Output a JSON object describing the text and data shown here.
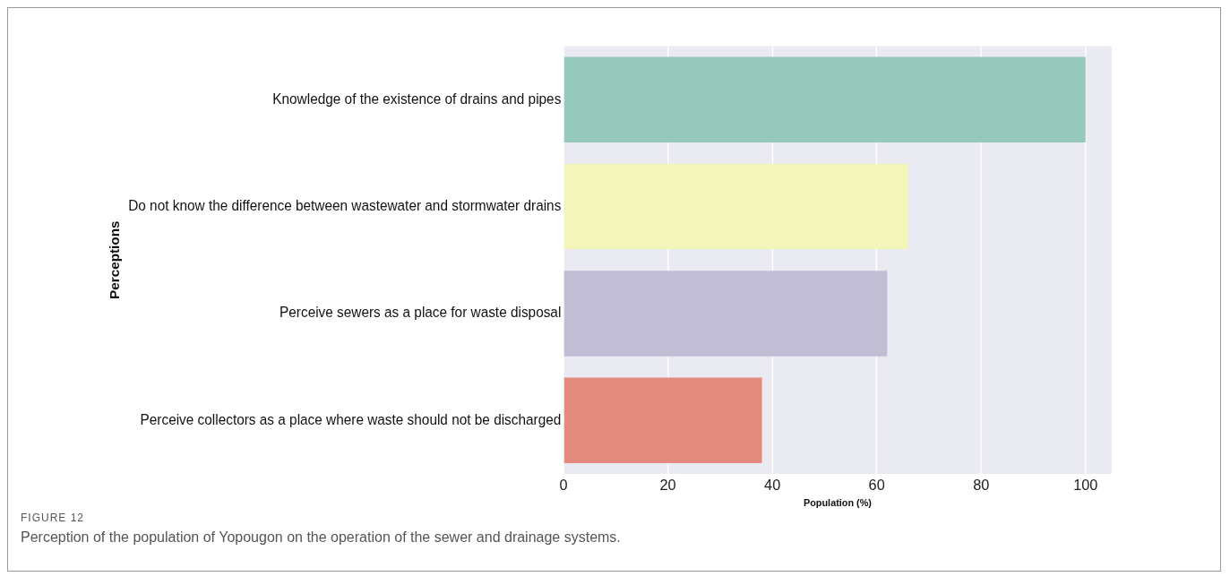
{
  "chart_data": {
    "type": "bar",
    "orientation": "horizontal",
    "xlabel": "Population (%)",
    "ylabel": "Perceptions",
    "categories": [
      "Knowledge of the existence of drains and pipes",
      "Do not know the difference between wastewater and stormwater drains",
      "Perceive sewers as a place for waste disposal",
      "Perceive collectors as a place where waste should not be discharged"
    ],
    "values": [
      100,
      66,
      62,
      38
    ],
    "colors": [
      "#96c8bc",
      "#f4f5b9",
      "#c1bdd4",
      "#e48a7e"
    ],
    "xlim": [
      0,
      105
    ],
    "xticks": [
      0,
      20,
      40,
      60,
      80,
      100
    ],
    "grid": "x",
    "legend": false,
    "annotations": [
      "FIGURE 12",
      "Perception of the population of Yopougon on the operation of the sewer and drainage systems."
    ]
  }
}
